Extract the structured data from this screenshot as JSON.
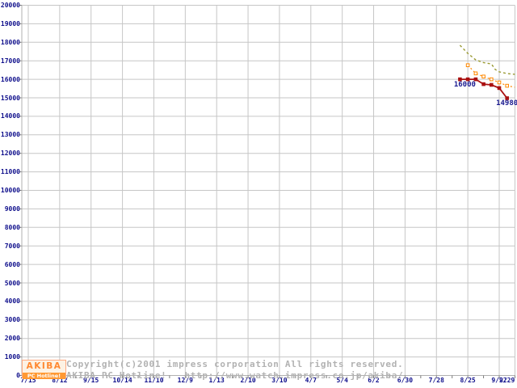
{
  "chart_data": {
    "type": "line",
    "title": "",
    "xlabel": "",
    "ylabel": "",
    "grid": true,
    "legend": "none",
    "y_axis": {
      "min": 0,
      "max": 20000,
      "step": 1000
    },
    "x_axis": {
      "tick_labels": [
        "7/15",
        "8/12",
        "9/15",
        "10/14",
        "11/10",
        "12/9",
        "1/13",
        "2/10",
        "3/10",
        "4/7",
        "5/4",
        "6/2",
        "6/30",
        "7/28",
        "8/25",
        "9/22"
      ],
      "weeks_per_tick": 4,
      "extra_label": {
        "text": "9/29",
        "week": 61
      },
      "minor_tick_week_step": 2,
      "last_week": 62
    },
    "series": [
      {
        "name": "upper-olive-dashed",
        "color": "#9a9a33",
        "style": "dashed",
        "dash": "3,3",
        "width": 1.4,
        "markers": "none",
        "points": [
          [
            55,
            17840
          ],
          [
            56,
            17400
          ],
          [
            57,
            17050
          ],
          [
            58,
            16900
          ],
          [
            59,
            16830
          ],
          [
            59.5,
            16530
          ],
          [
            60,
            16400
          ],
          [
            61,
            16310
          ],
          [
            62,
            16270
          ]
        ]
      },
      {
        "name": "middle-orange-dashed",
        "color": "#ff8800",
        "style": "dashed",
        "dash": "2,3",
        "width": 1.2,
        "markers": "skip-last",
        "marker_fill": "#ffffff",
        "points": [
          [
            56,
            16760
          ],
          [
            57,
            16320
          ],
          [
            58,
            16150
          ],
          [
            59,
            16000
          ],
          [
            60,
            15830
          ],
          [
            61,
            15650
          ],
          [
            62,
            15570
          ]
        ]
      },
      {
        "name": "lower-red-solid",
        "color": "#aa1111",
        "style": "solid",
        "dash": null,
        "width": 1.8,
        "markers": "all",
        "marker_fill": "#aa1111",
        "points": [
          [
            55,
            16000
          ],
          [
            56,
            16000
          ],
          [
            57,
            16000
          ],
          [
            58,
            15740
          ],
          [
            59,
            15700
          ],
          [
            60,
            15530
          ],
          [
            61,
            14980
          ]
        ]
      }
    ],
    "annotations": [
      {
        "text": "16000",
        "week": 57,
        "value": 16000,
        "align": "right",
        "dy": 2
      },
      {
        "text": "14980",
        "week": 59.6,
        "value": 14980,
        "align": "left",
        "dy": 1
      }
    ],
    "colors": {
      "grid": "#c6c6c6",
      "frame": "#b0b0b0",
      "tick": "#7a7a7a",
      "axis_text": "#10108c"
    }
  },
  "branding": {
    "logo_top": "AKIBA",
    "logo_bottom": "PC Hotline!"
  },
  "footer": {
    "line1": "Copyright(c)2001 impress corporation All rights reserved.",
    "line2": "AKIBA PC Hotline!   http://www.watch.impress.co.jp/akiba/"
  }
}
